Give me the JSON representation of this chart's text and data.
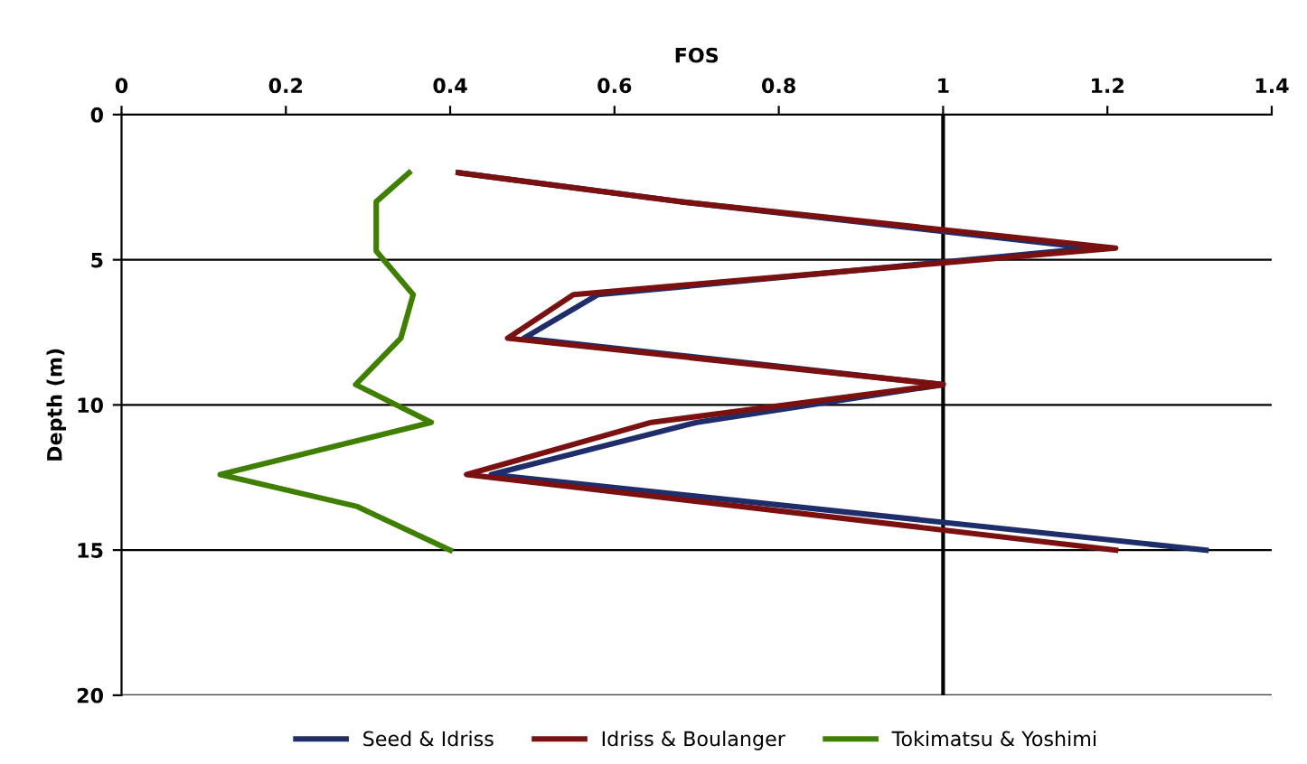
{
  "chart_data": {
    "type": "line",
    "xlabel": "FOS",
    "ylabel": "Depth (m)",
    "xlim": [
      0,
      1.4
    ],
    "xticks": [
      0,
      0.2,
      0.4,
      0.6,
      0.8,
      1,
      1.2,
      1.4
    ],
    "ylim": [
      20,
      0
    ],
    "yticks": [
      0,
      5,
      10,
      15,
      20
    ],
    "grid": "y",
    "legend": "bottom",
    "ref_lines": [
      {
        "axis": "x",
        "value": 1,
        "color": "#000000"
      }
    ],
    "series": [
      {
        "name": "Seed & Idriss",
        "color": "#1f2d6b",
        "x": [
          0.41,
          0.68,
          1.18,
          0.58,
          0.49,
          1.0,
          0.7,
          0.45,
          1.32
        ],
        "values": [
          2,
          3,
          4.6,
          6.2,
          7.7,
          9.3,
          10.6,
          12.4,
          15
        ]
      },
      {
        "name": "Idriss & Boulanger",
        "color": "#7a1010",
        "x": [
          0.41,
          0.68,
          1.21,
          0.55,
          0.47,
          1.0,
          0.645,
          0.42,
          1.21
        ],
        "values": [
          2,
          3,
          4.6,
          6.2,
          7.7,
          9.3,
          10.6,
          12.4,
          15
        ]
      },
      {
        "name": "Tokimatsu & Yoshimi",
        "color": "#3f7f00",
        "x": [
          0.35,
          0.31,
          0.31,
          0.355,
          0.34,
          0.285,
          0.377,
          0.12,
          0.287,
          0.4
        ],
        "values": [
          2,
          3,
          4.7,
          6.2,
          7.7,
          9.3,
          10.6,
          12.4,
          13.5,
          15
        ]
      }
    ]
  }
}
